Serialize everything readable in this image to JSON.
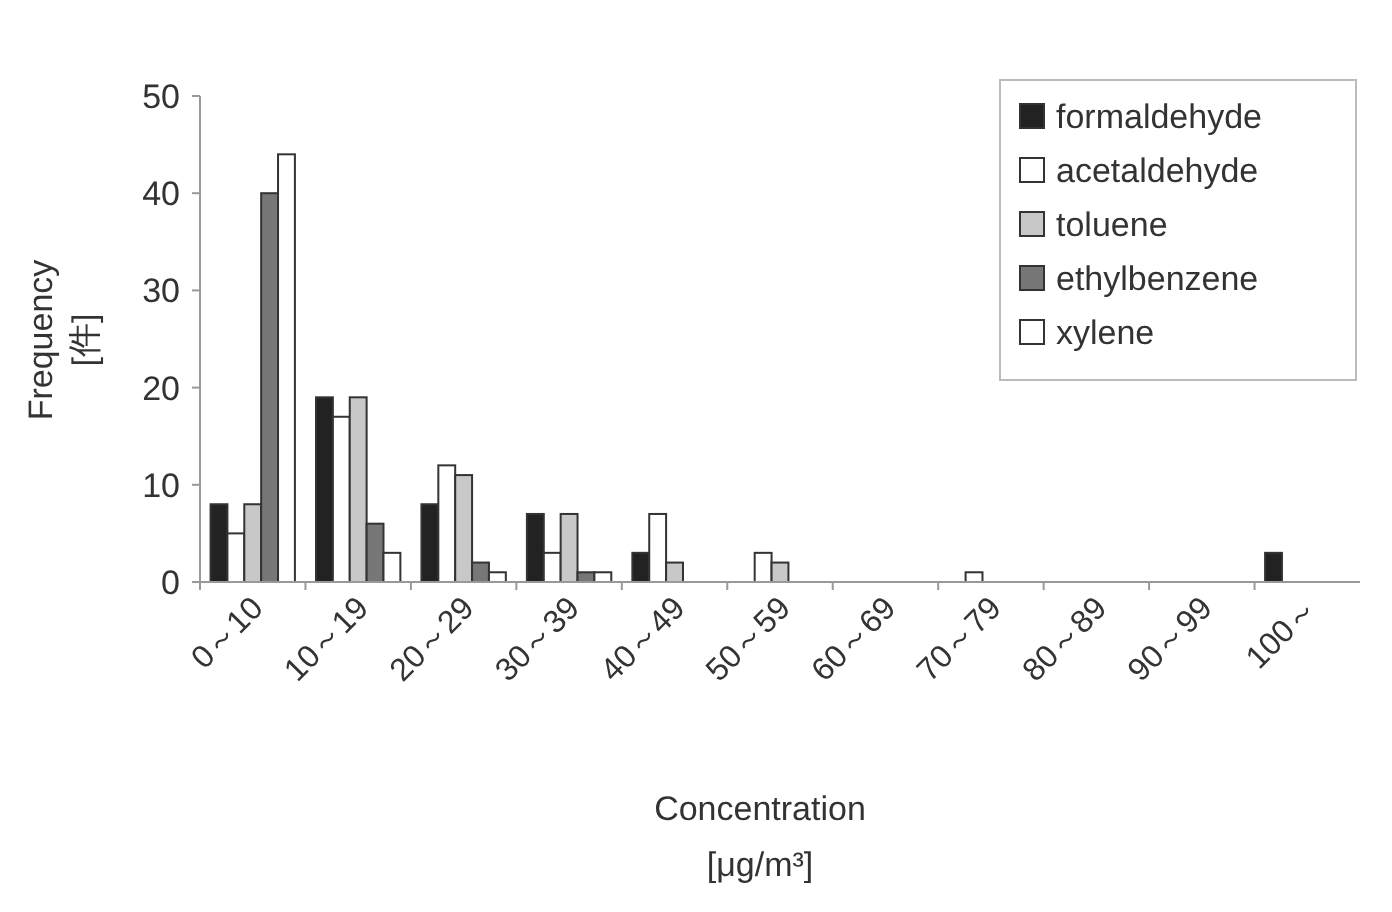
{
  "chart_data": {
    "type": "bar",
    "xlabel": "Concentration\n[μg/m³]",
    "ylabel": "Frequency\n[件]",
    "categories": [
      "0～10",
      "10～19",
      "20～29",
      "30～39",
      "40～49",
      "50～59",
      "60～69",
      "70～79",
      "80～89",
      "90～99",
      "100～"
    ],
    "series": [
      {
        "name": "formaldehyde",
        "color": "#222222",
        "values": [
          8,
          19,
          8,
          7,
          3,
          0,
          0,
          0,
          0,
          0,
          3
        ]
      },
      {
        "name": "acetaldehyde",
        "color": "#ffffff",
        "values": [
          5,
          17,
          12,
          3,
          7,
          3,
          0,
          1,
          0,
          0,
          0
        ]
      },
      {
        "name": "toluene",
        "color": "#c8c8c8",
        "values": [
          8,
          19,
          11,
          7,
          2,
          2,
          0,
          0,
          0,
          0,
          0
        ]
      },
      {
        "name": "ethylbenzene",
        "color": "#777777",
        "values": [
          40,
          6,
          2,
          1,
          0,
          0,
          0,
          0,
          0,
          0,
          0
        ]
      },
      {
        "name": "xylene",
        "color": "#ffffff",
        "values": [
          44,
          3,
          1,
          1,
          0,
          0,
          0,
          0,
          0,
          0,
          0
        ]
      }
    ],
    "ylim": [
      0,
      50
    ],
    "yticks": [
      0,
      10,
      20,
      30,
      40,
      50
    ],
    "grid": false,
    "legend": "top right"
  }
}
